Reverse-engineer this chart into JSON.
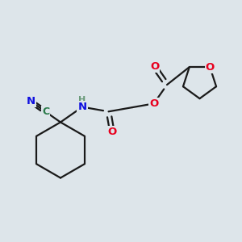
{
  "background_color": "#dde5ea",
  "colors": {
    "bond": "#1a1a1a",
    "oxygen": "#e8001e",
    "nitrogen": "#1010e0",
    "carbon_label": "#2a7a4a",
    "H_color": "#6a9a7a",
    "background": "#dde5ea"
  },
  "layout": {
    "xlim": [
      0,
      10
    ],
    "ylim": [
      0,
      10
    ]
  }
}
